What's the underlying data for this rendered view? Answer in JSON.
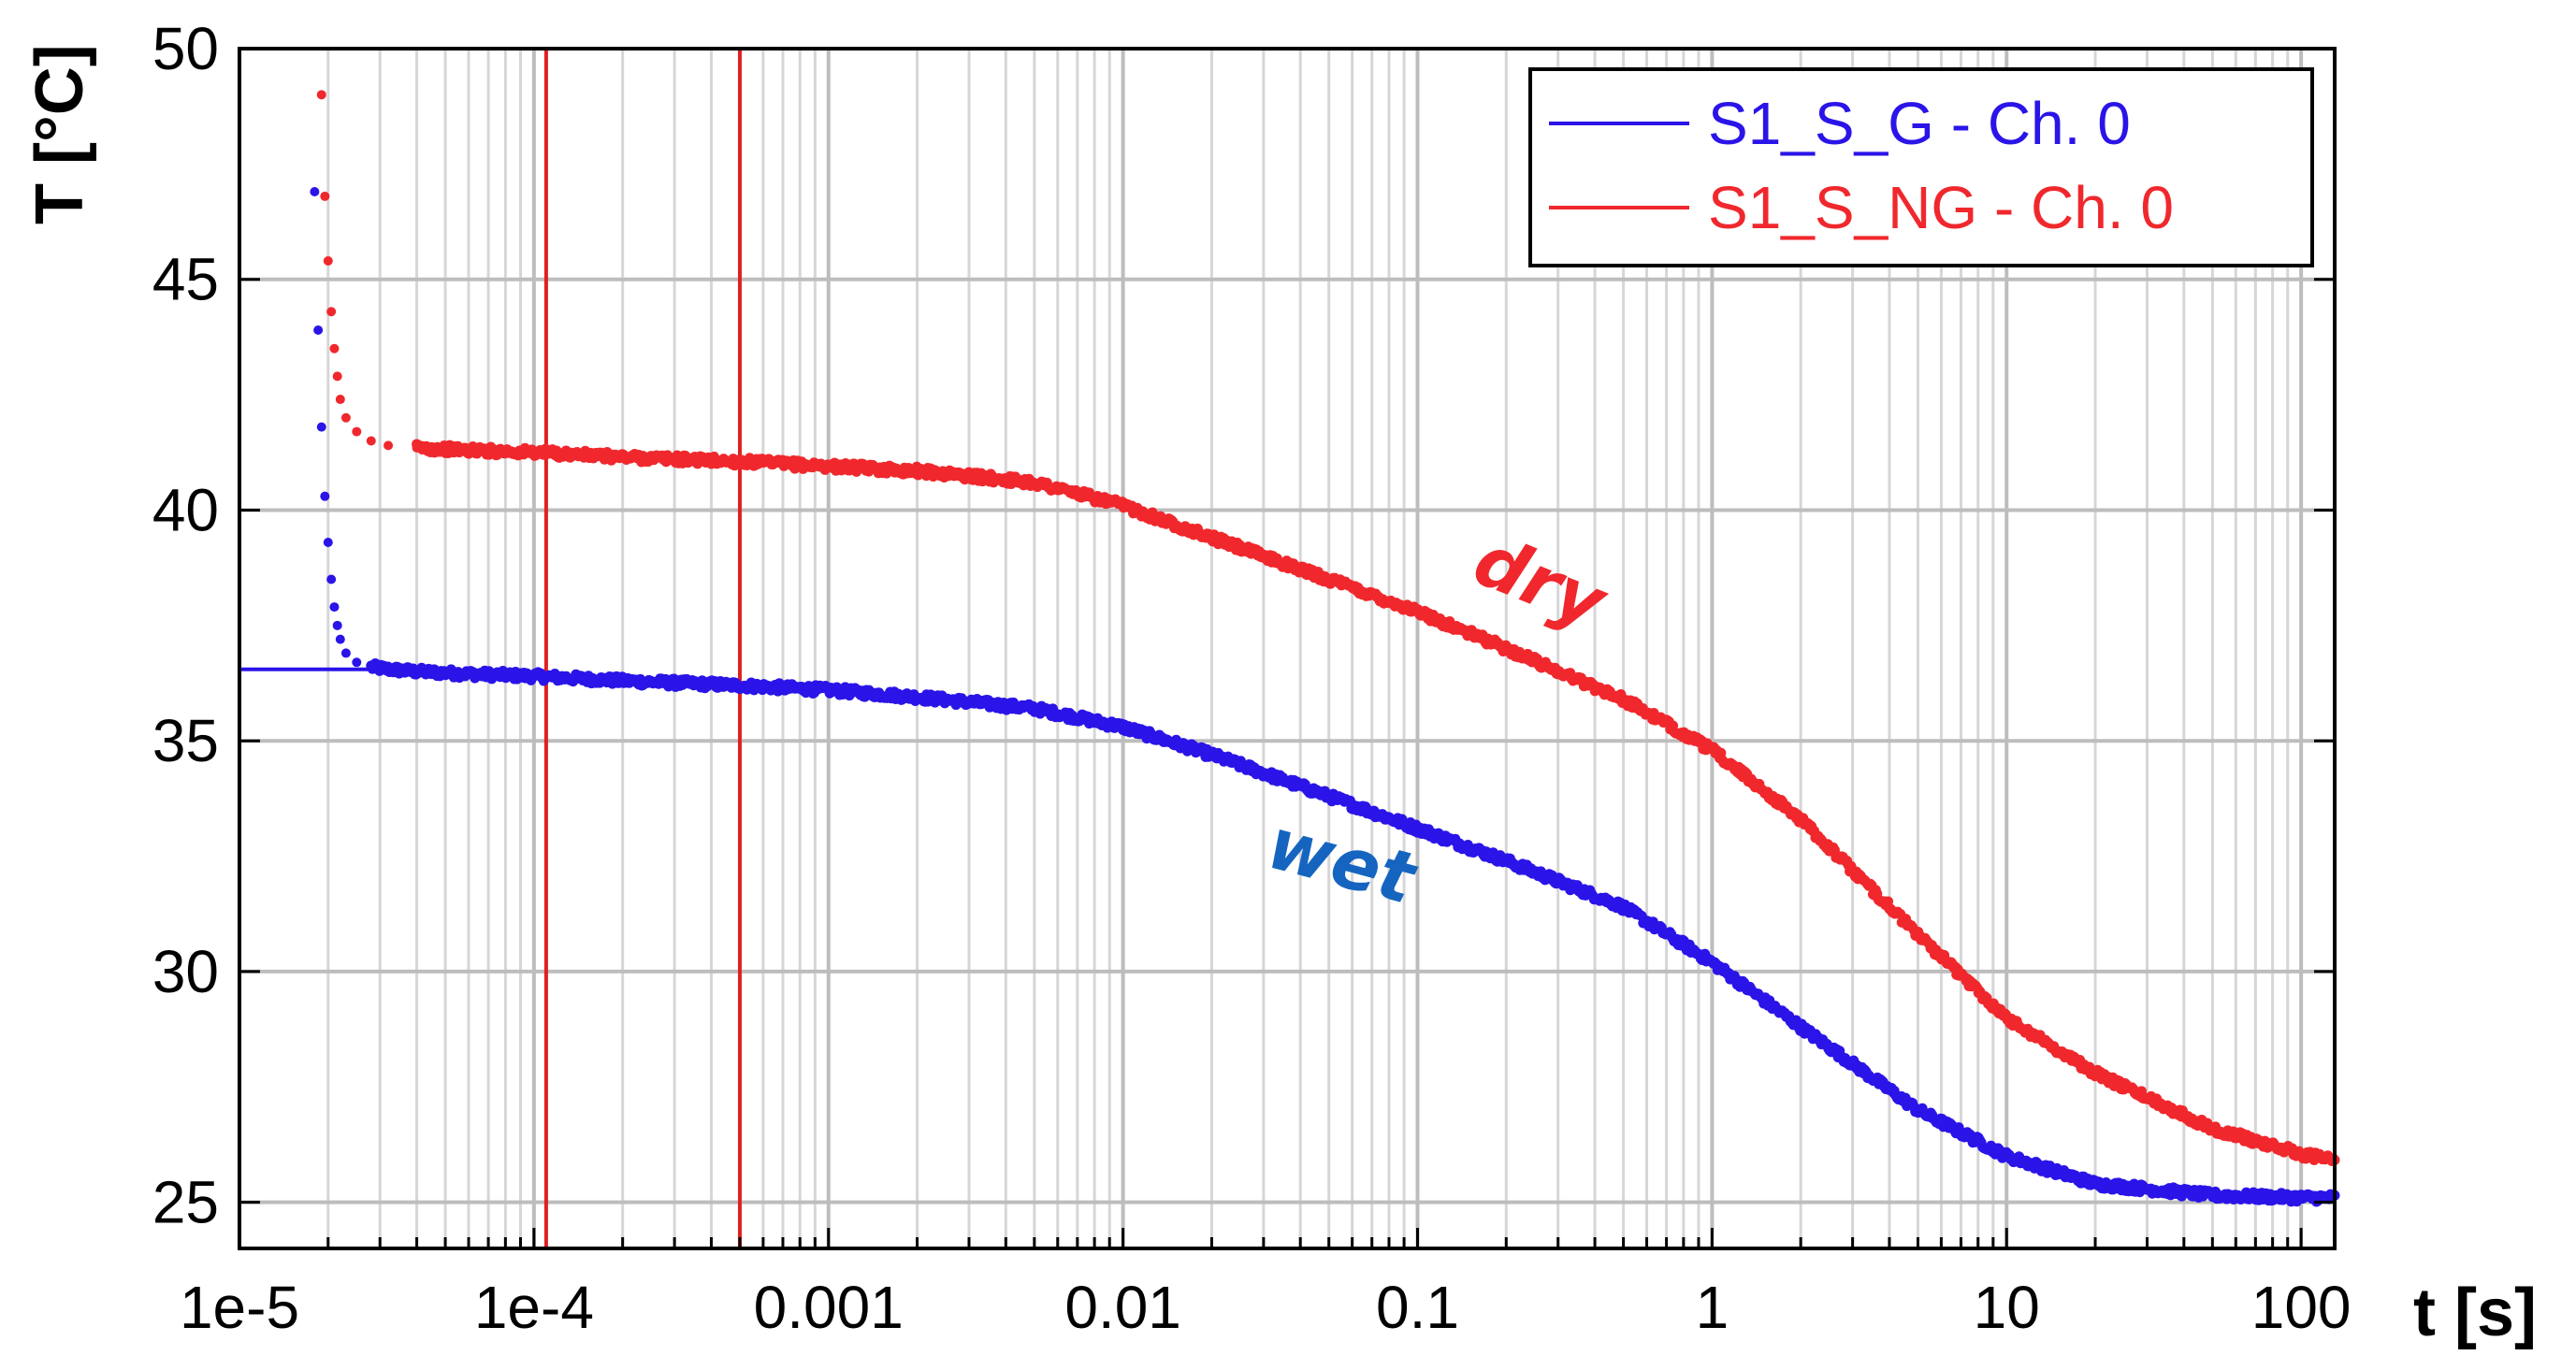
{
  "chart_data": {
    "type": "scatter",
    "title": "",
    "xlabel": "t [s]",
    "ylabel": "T [°C]",
    "xscale": "log",
    "xlim": [
      1e-05,
      130
    ],
    "ylim": [
      24,
      50
    ],
    "grid": true,
    "legend_position": "top-right",
    "x_tick_labels": [
      "1e-5",
      "1e-4",
      "0.001",
      "0.01",
      "0.1",
      "1",
      "10",
      "100"
    ],
    "x_tick_values": [
      1e-05,
      0.0001,
      0.001,
      0.01,
      0.1,
      1,
      10,
      100
    ],
    "y_tick_labels": [
      "25",
      "30",
      "35",
      "40",
      "45",
      "50"
    ],
    "y_tick_values": [
      25,
      30,
      35,
      40,
      45,
      50
    ],
    "vertical_markers": [
      {
        "x": 0.00011,
        "color": "#e02020"
      },
      {
        "x": 0.0005,
        "color": "#e02020"
      }
    ],
    "series": [
      {
        "name": "S1_S_G - Ch. 0",
        "color": "#2a14e8",
        "baseline": {
          "x": [
            1e-05,
            3.5e-05
          ],
          "y": [
            36.55,
            36.55
          ]
        },
        "x": [
          1.8e-05,
          1.85e-05,
          1.9e-05,
          1.95e-05,
          2e-05,
          2.05e-05,
          2.1e-05,
          2.15e-05,
          2.2e-05,
          2.3e-05,
          2.5e-05,
          2.8e-05,
          3.2e-05,
          4e-05,
          6e-05,
          0.0001,
          0.0002,
          0.0005,
          0.001,
          0.002,
          0.005,
          0.01,
          0.02,
          0.05,
          0.1,
          0.2,
          0.5,
          1,
          2,
          5,
          10,
          20,
          50,
          100,
          130
        ],
        "y": [
          46.9,
          43.9,
          41.8,
          40.3,
          39.3,
          38.5,
          37.9,
          37.5,
          37.2,
          36.9,
          36.7,
          36.6,
          36.55,
          36.5,
          36.45,
          36.4,
          36.3,
          36.2,
          36.1,
          35.95,
          35.7,
          35.3,
          34.7,
          33.8,
          33.1,
          32.4,
          31.4,
          30.2,
          28.8,
          27.0,
          26.0,
          25.4,
          25.15,
          25.1,
          25.1
        ]
      },
      {
        "name": "S1_S_NG - Ch. 0",
        "color": "#f0282d",
        "x": [
          1.9e-05,
          1.95e-05,
          2e-05,
          2.05e-05,
          2.1e-05,
          2.15e-05,
          2.2e-05,
          2.3e-05,
          2.5e-05,
          2.8e-05,
          3.2e-05,
          4e-05,
          6e-05,
          0.0001,
          0.0002,
          0.0005,
          0.001,
          0.002,
          0.005,
          0.01,
          0.02,
          0.05,
          0.1,
          0.2,
          0.5,
          1,
          2,
          5,
          10,
          20,
          50,
          100,
          130
        ],
        "y": [
          49.0,
          46.8,
          45.4,
          44.3,
          43.5,
          42.9,
          42.4,
          42.0,
          41.7,
          41.5,
          41.4,
          41.35,
          41.3,
          41.25,
          41.15,
          41.05,
          40.95,
          40.85,
          40.6,
          40.1,
          39.4,
          38.5,
          37.8,
          37.0,
          35.9,
          34.8,
          33.3,
          30.8,
          29.0,
          27.8,
          26.6,
          26.05,
          25.9
        ]
      }
    ],
    "annotations": [
      {
        "text": "dry",
        "color": "#f0282d",
        "x": 0.15,
        "y": 38.5
      },
      {
        "text": "wet",
        "color": "#1565c0",
        "x": 0.03,
        "y": 32.3
      }
    ]
  },
  "legend": {
    "entries": [
      {
        "label": "S1_S_G - Ch. 0",
        "color": "#2a14e8"
      },
      {
        "label": "S1_S_NG - Ch. 0",
        "color": "#f0282d"
      }
    ]
  }
}
